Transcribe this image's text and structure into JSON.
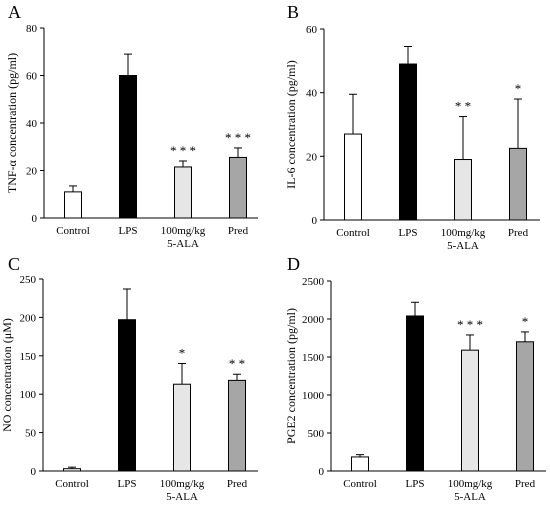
{
  "chart_data": [
    {
      "panel": "A",
      "type": "bar",
      "ylabel": "TNF-α concentration (pg/ml)",
      "categories": [
        [
          "Control"
        ],
        [
          "LPS"
        ],
        [
          "100mg/kg",
          "5-ALA"
        ],
        [
          "Pred"
        ]
      ],
      "values": [
        11,
        60,
        21.5,
        25.5
      ],
      "errors": [
        2.5,
        9,
        2.5,
        4
      ],
      "significance": [
        "",
        "",
        "* * *",
        "* * *"
      ],
      "ylim": [
        0,
        80
      ],
      "yticks": [
        0,
        20,
        40,
        60,
        80
      ],
      "colors": [
        "#ffffff",
        "#000000",
        "#e6e6e6",
        "#a6a6a6"
      ]
    },
    {
      "panel": "B",
      "type": "bar",
      "ylabel": "IL-6 concentration (pg/ml)",
      "categories": [
        [
          "Control"
        ],
        [
          "LPS"
        ],
        [
          "100mg/kg",
          "5-ALA"
        ],
        [
          "Pred"
        ]
      ],
      "values": [
        27,
        49,
        19,
        22.5
      ],
      "errors": [
        12.5,
        5.5,
        13.5,
        15.5
      ],
      "significance": [
        "",
        "",
        "* *",
        "*"
      ],
      "ylim": [
        0,
        60
      ],
      "yticks": [
        0,
        20,
        40,
        60
      ],
      "colors": [
        "#ffffff",
        "#000000",
        "#e6e6e6",
        "#a6a6a6"
      ]
    },
    {
      "panel": "C",
      "type": "bar",
      "ylabel": "NO concentration (μM)",
      "categories": [
        [
          "Control"
        ],
        [
          "LPS"
        ],
        [
          "100mg/kg",
          "5-ALA"
        ],
        [
          "Pred"
        ]
      ],
      "values": [
        3,
        197,
        113,
        118
      ],
      "errors": [
        2,
        40,
        27,
        8
      ],
      "significance": [
        "",
        "",
        "*",
        "* *"
      ],
      "ylim": [
        0,
        250
      ],
      "yticks": [
        0,
        50,
        100,
        150,
        200,
        250
      ],
      "colors": [
        "#ffffff",
        "#000000",
        "#e6e6e6",
        "#a6a6a6"
      ]
    },
    {
      "panel": "D",
      "type": "bar",
      "ylabel": "PGE2 concentration (pg/ml)",
      "categories": [
        [
          "Control"
        ],
        [
          "LPS"
        ],
        [
          "100mg/kg",
          "5-ALA"
        ],
        [
          "Pred"
        ]
      ],
      "values": [
        185,
        2040,
        1590,
        1700
      ],
      "errors": [
        30,
        180,
        200,
        130
      ],
      "significance": [
        "",
        "",
        "* * *",
        "*"
      ],
      "ylim": [
        0,
        2500
      ],
      "yticks": [
        0,
        500,
        1000,
        1500,
        2000,
        2500
      ],
      "colors": [
        "#ffffff",
        "#000000",
        "#e6e6e6",
        "#a6a6a6"
      ]
    }
  ]
}
